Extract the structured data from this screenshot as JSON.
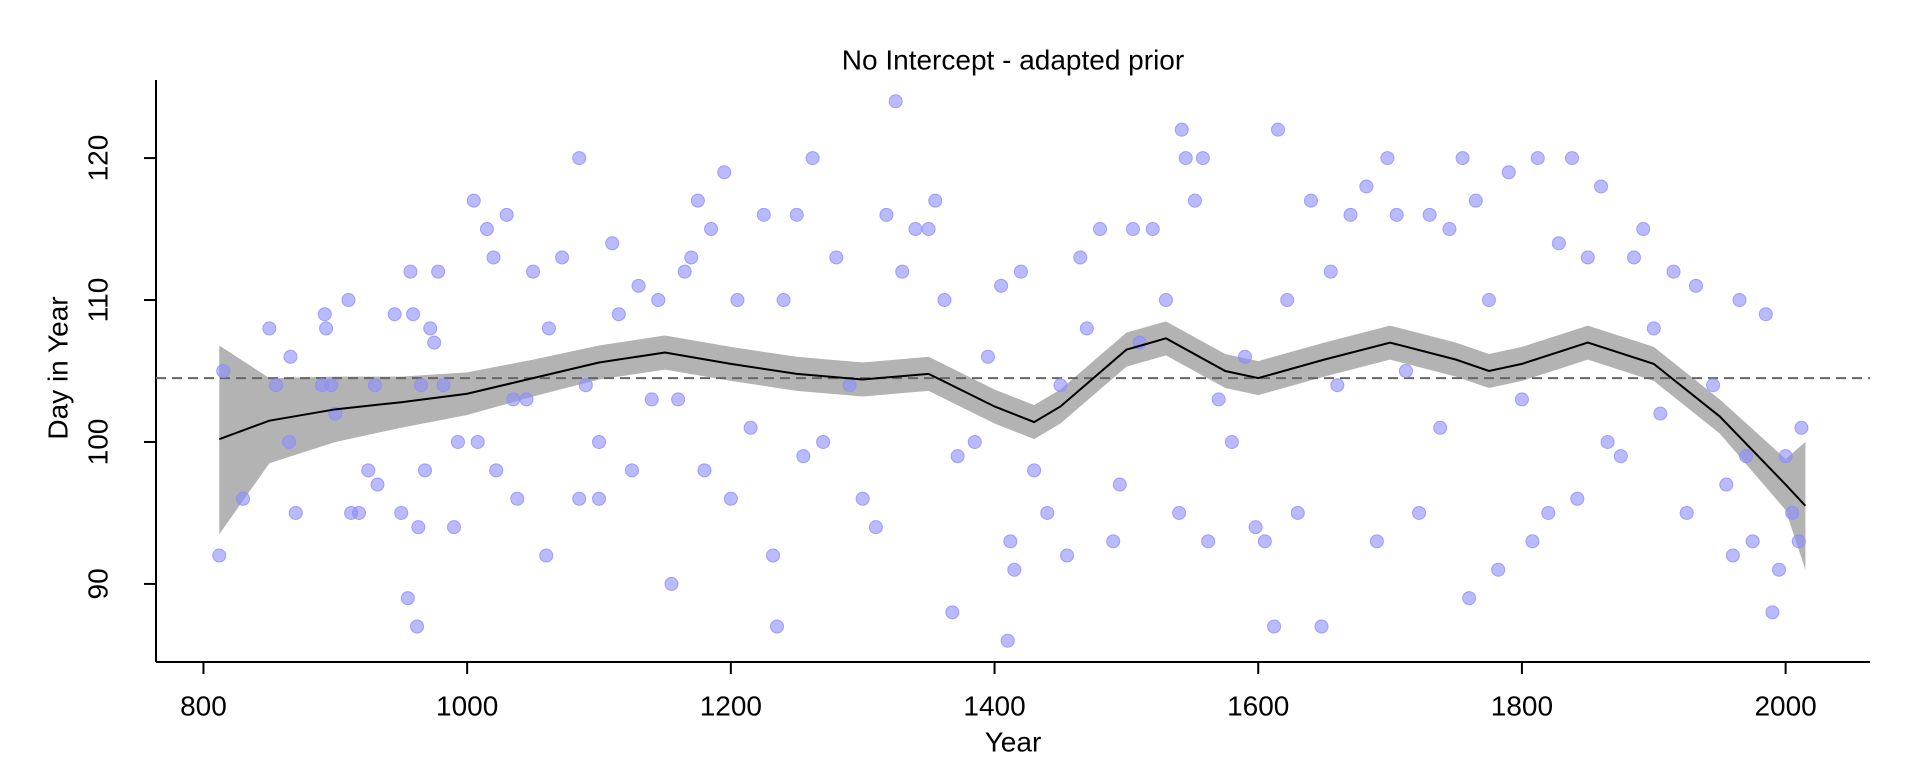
{
  "chart_data": {
    "type": "scatter",
    "title": "No Intercept - adapted prior",
    "x_label": "Year",
    "y_label": "Day in Year",
    "xlim": [
      764,
      2064
    ],
    "ylim": [
      84.5,
      125.5
    ],
    "xticks": [
      800,
      1000,
      1200,
      1400,
      1600,
      1800,
      2000
    ],
    "yticks": [
      90,
      100,
      110,
      120
    ],
    "reference_line": 104.5,
    "series": [
      {
        "color": "#8c8cff",
        "x": [
          812,
          815,
          830,
          850,
          855,
          865,
          866,
          870,
          890,
          892,
          893,
          897,
          900,
          910,
          912,
          918,
          925,
          930,
          932,
          945,
          950,
          955,
          957,
          959,
          962,
          963,
          965,
          968,
          972,
          975,
          978,
          982,
          990,
          993,
          1005,
          1008,
          1015,
          1020,
          1022,
          1030,
          1035,
          1038,
          1045,
          1050,
          1060,
          1062,
          1072,
          1085,
          1085,
          1090,
          1100,
          1100,
          1110,
          1115,
          1125,
          1130,
          1140,
          1145,
          1155,
          1160,
          1165,
          1170,
          1175,
          1180,
          1185,
          1195,
          1200,
          1205,
          1215,
          1225,
          1232,
          1235,
          1240,
          1250,
          1255,
          1262,
          1270,
          1280,
          1290,
          1300,
          1310,
          1318,
          1325,
          1330,
          1340,
          1350,
          1355,
          1362,
          1368,
          1372,
          1385,
          1395,
          1405,
          1410,
          1412,
          1415,
          1420,
          1430,
          1440,
          1450,
          1455,
          1465,
          1470,
          1480,
          1490,
          1495,
          1505,
          1510,
          1520,
          1530,
          1540,
          1542,
          1545,
          1552,
          1558,
          1562,
          1570,
          1580,
          1590,
          1598,
          1605,
          1612,
          1615,
          1622,
          1630,
          1640,
          1648,
          1655,
          1660,
          1670,
          1682,
          1690,
          1698,
          1705,
          1712,
          1722,
          1730,
          1738,
          1745,
          1755,
          1760,
          1765,
          1775,
          1782,
          1790,
          1800,
          1808,
          1812,
          1820,
          1828,
          1838,
          1842,
          1850,
          1860,
          1865,
          1875,
          1885,
          1892,
          1900,
          1905,
          1915,
          1925,
          1932,
          1945,
          1955,
          1960,
          1965,
          1970,
          1975,
          1985,
          1990,
          1995,
          2000,
          2005,
          2010,
          2012
        ],
        "values": [
          92,
          105,
          96,
          108,
          104,
          100,
          106,
          95,
          104,
          109,
          108,
          104,
          102,
          110,
          95,
          95,
          98,
          104,
          97,
          109,
          95,
          89,
          112,
          109,
          87,
          94,
          104,
          98,
          108,
          107,
          112,
          104,
          94,
          100,
          117,
          100,
          115,
          113,
          98,
          116,
          103,
          96,
          103,
          112,
          92,
          108,
          113,
          120,
          96,
          104,
          100,
          96,
          114,
          109,
          98,
          111,
          103,
          110,
          90,
          103,
          112,
          113,
          117,
          98,
          115,
          119,
          96,
          110,
          101,
          116,
          92,
          87,
          110,
          116,
          99,
          120,
          100,
          113,
          104,
          96,
          94,
          116,
          124,
          112,
          115,
          115,
          117,
          110,
          88,
          99,
          100,
          106,
          111,
          86,
          93,
          91,
          112,
          98,
          95,
          104,
          92,
          113,
          108,
          115,
          93,
          97,
          115,
          107,
          115,
          110,
          95,
          122,
          120,
          117,
          120,
          93,
          103,
          100,
          106,
          94,
          93,
          87,
          122,
          110,
          95,
          117,
          87,
          112,
          104,
          116,
          118,
          93,
          120,
          116,
          105,
          95,
          116,
          101,
          115,
          120,
          89,
          117,
          110,
          91,
          119,
          103,
          93,
          120,
          95,
          114,
          120,
          96,
          113,
          118,
          100,
          99,
          113,
          115,
          108,
          102,
          112,
          95,
          111,
          104,
          97,
          92,
          110,
          99,
          93,
          109,
          88,
          91,
          99,
          95,
          93,
          101
        ]
      }
    ],
    "fit": {
      "color": "#000000",
      "band_color": "#b3b3b3",
      "x": [
        812,
        850,
        900,
        950,
        1000,
        1050,
        1100,
        1150,
        1200,
        1250,
        1300,
        1350,
        1400,
        1430,
        1450,
        1500,
        1530,
        1575,
        1600,
        1650,
        1700,
        1750,
        1775,
        1800,
        1850,
        1900,
        1950,
        2000,
        2015
      ],
      "values": [
        100.2,
        101.5,
        102.3,
        102.8,
        103.4,
        104.5,
        105.6,
        106.3,
        105.5,
        104.8,
        104.4,
        104.8,
        102.5,
        101.4,
        102.5,
        106.5,
        107.3,
        105.0,
        104.5,
        105.8,
        107.0,
        105.8,
        105.0,
        105.5,
        107.0,
        105.5,
        101.8,
        97.0,
        95.5
      ],
      "lower": [
        93.5,
        98.5,
        100.0,
        101.0,
        101.9,
        103.2,
        104.4,
        105.1,
        104.3,
        103.6,
        103.2,
        103.6,
        101.3,
        100.2,
        101.3,
        105.3,
        106.1,
        103.8,
        103.3,
        104.6,
        105.8,
        104.6,
        103.8,
        104.3,
        105.8,
        104.3,
        100.6,
        95.2,
        91.0
      ],
      "upper": [
        106.8,
        104.5,
        104.6,
        104.6,
        104.9,
        105.8,
        106.8,
        107.5,
        106.7,
        106.0,
        105.6,
        106.0,
        103.7,
        102.6,
        103.7,
        107.7,
        108.5,
        106.2,
        105.7,
        107.0,
        108.2,
        107.0,
        106.2,
        106.7,
        108.2,
        106.7,
        103.0,
        98.8,
        100.0
      ]
    }
  }
}
